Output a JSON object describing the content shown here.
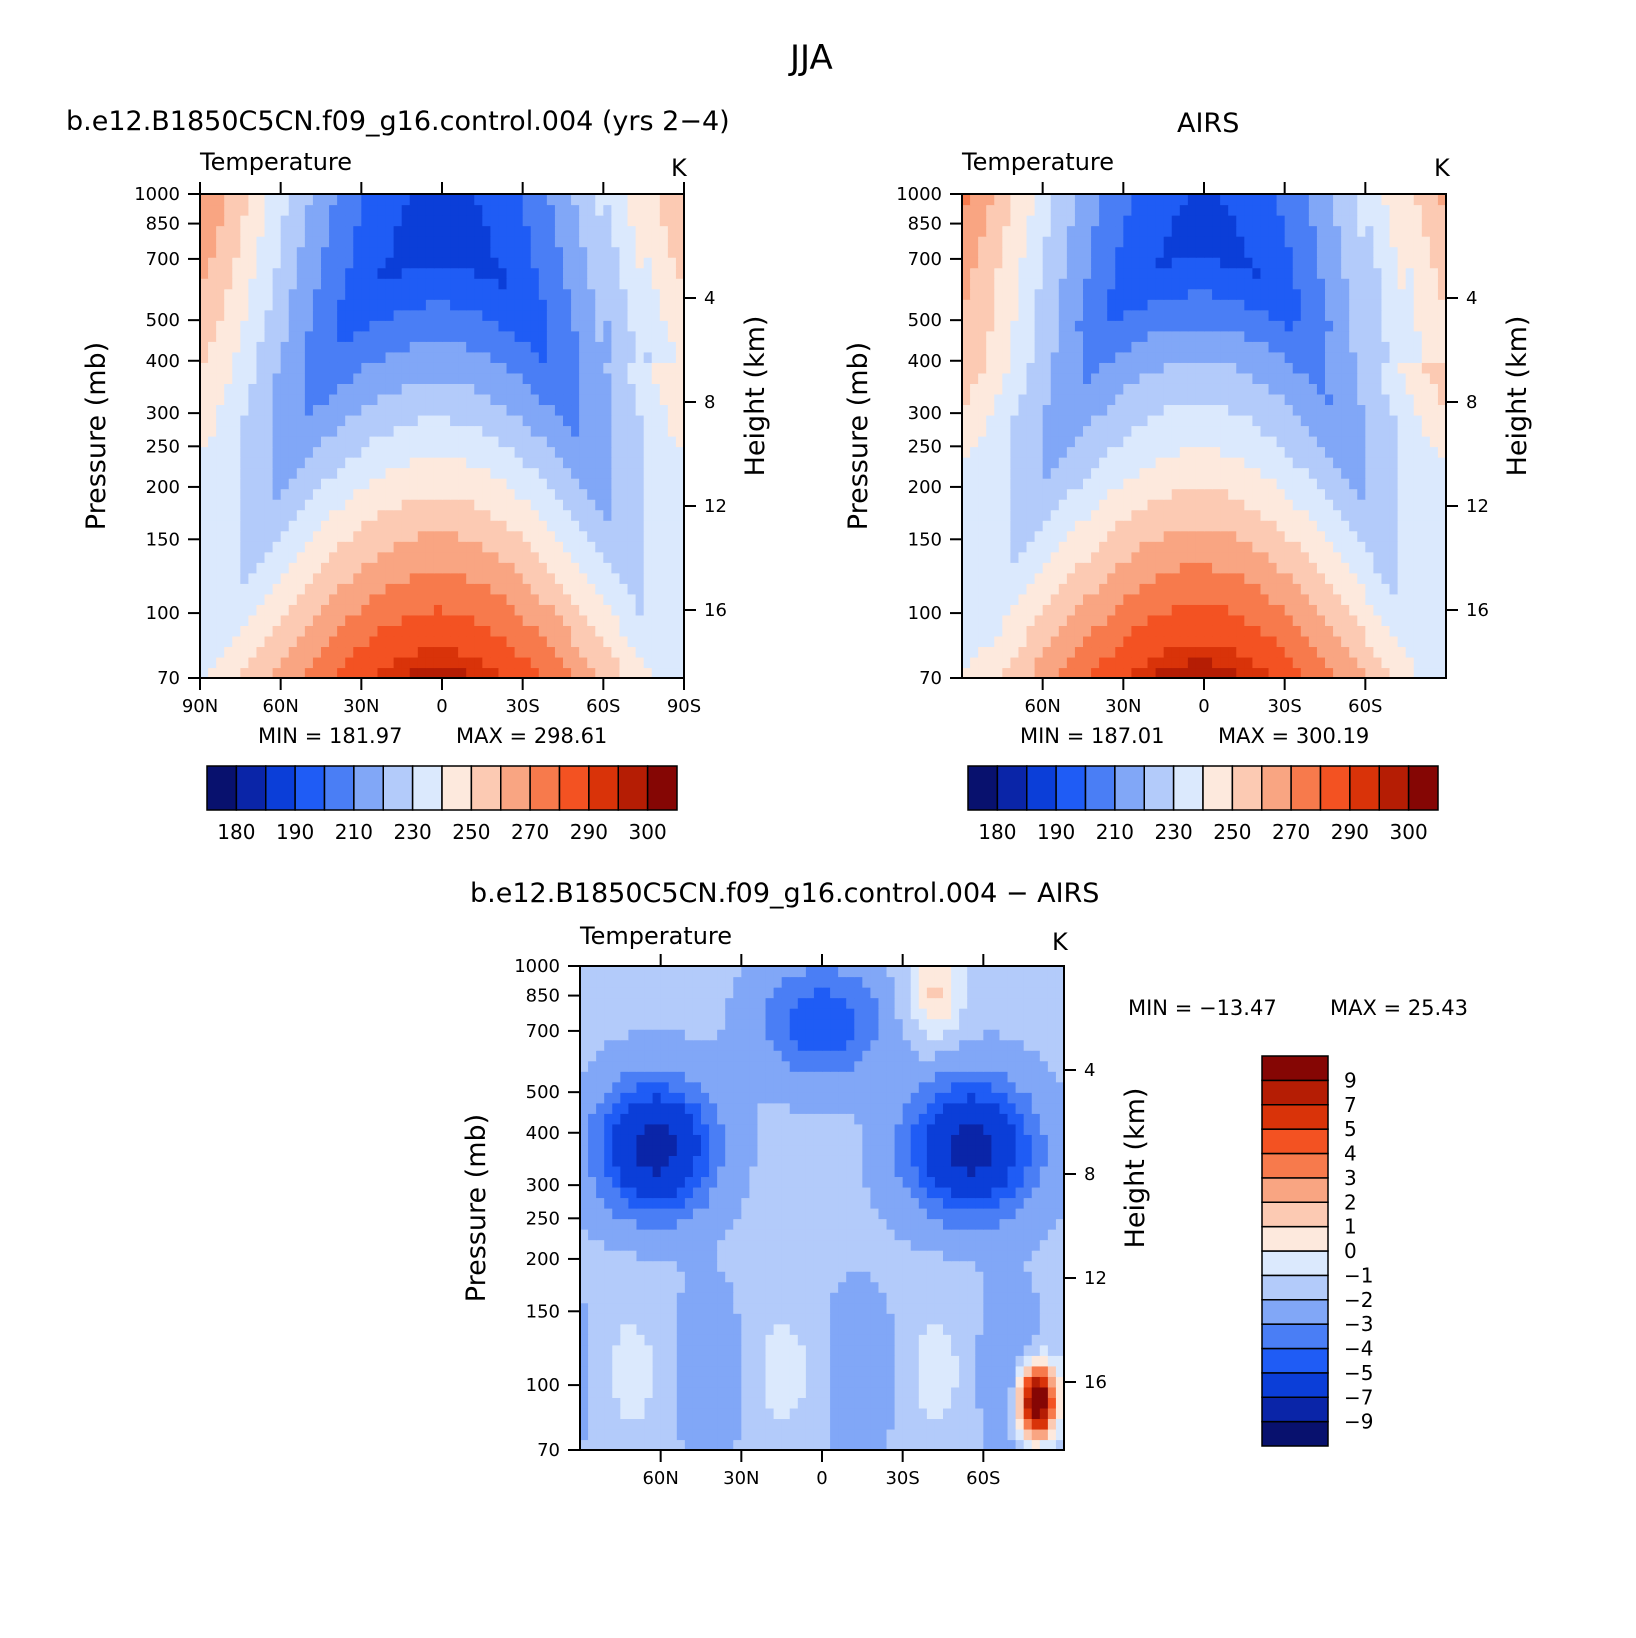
{
  "figure_title": "JJA",
  "chart_data": [
    {
      "type": "heatmap",
      "name": "b.e12.B1850C5CN.f09_g16.control.004 (yrs 2-4)",
      "title": "b.e12.B1850C5CN.f09_g16.control.004 (yrs 2−4)",
      "variable": "Temperature",
      "units": "K",
      "ylabel": "Pressure (mb)",
      "y2label": "Height (km)",
      "xticks": [
        "90N",
        "60N",
        "30N",
        "0",
        "30S",
        "60S",
        "90S"
      ],
      "yticks": [
        70,
        100,
        150,
        200,
        250,
        300,
        400,
        500,
        700,
        850,
        1000
      ],
      "y2ticks": [
        4,
        8,
        12,
        16
      ],
      "ylim": [
        1000,
        70
      ],
      "y_scale": "log",
      "min_text": "MIN = 181.97",
      "max_text": "MAX = 298.61",
      "min": 181.97,
      "max": 298.61,
      "colorbar_orientation": "horizontal",
      "colorbar_labels": [
        "180",
        "190",
        "210",
        "230",
        "250",
        "270",
        "290",
        "300"
      ]
    },
    {
      "type": "heatmap",
      "name": "AIRS",
      "title": "AIRS",
      "variable": "Temperature",
      "units": "K",
      "ylabel": "Pressure (mb)",
      "y2label": "Height (km)",
      "xticks": [
        "60N",
        "30N",
        "0",
        "30S",
        "60S"
      ],
      "yticks": [
        70,
        100,
        150,
        200,
        250,
        300,
        400,
        500,
        700,
        850,
        1000
      ],
      "y2ticks": [
        4,
        8,
        12,
        16
      ],
      "ylim": [
        1000,
        70
      ],
      "y_scale": "log",
      "min_text": "MIN = 187.01",
      "max_text": "MAX = 300.19",
      "min": 187.01,
      "max": 300.19,
      "colorbar_orientation": "horizontal",
      "colorbar_labels": [
        "180",
        "190",
        "210",
        "230",
        "250",
        "270",
        "290",
        "300"
      ]
    },
    {
      "type": "heatmap",
      "name": "b.e12.B1850C5CN.f09_g16.control.004 - AIRS",
      "title": "b.e12.B1850C5CN.f09_g16.control.004 − AIRS",
      "variable": "Temperature",
      "units": "K",
      "ylabel": "Pressure (mb)",
      "y2label": "Height (km)",
      "xticks": [
        "60N",
        "30N",
        "0",
        "30S",
        "60S"
      ],
      "yticks": [
        70,
        100,
        150,
        200,
        250,
        300,
        400,
        500,
        700,
        850,
        1000
      ],
      "y2ticks": [
        4,
        8,
        12,
        16
      ],
      "ylim": [
        1000,
        70
      ],
      "y_scale": "log",
      "min_text": "MIN = −13.47",
      "max_text": "MAX = 25.43",
      "min": -13.47,
      "max": 25.43,
      "colorbar_orientation": "vertical",
      "colorbar_labels": [
        "9",
        "7",
        "5",
        "4",
        "3",
        "2",
        "1",
        "0",
        "−1",
        "−2",
        "−3",
        "−4",
        "−5",
        "−7",
        "−9"
      ]
    }
  ],
  "palettes": {
    "temperature": [
      "#08116e",
      "#0a25a8",
      "#0b3ed8",
      "#1f5cf5",
      "#4a7ef5",
      "#81a7f7",
      "#b3cbfa",
      "#dbe9fd",
      "#fde9dd",
      "#fccab3",
      "#f9a582",
      "#f77a4c",
      "#f35222",
      "#d93309",
      "#b51d04",
      "#850604"
    ],
    "difference": [
      "#08116e",
      "#0a25a8",
      "#0b3ed8",
      "#1f5cf5",
      "#4a7ef5",
      "#81a7f7",
      "#b3cbfa",
      "#dbe9fd",
      "#fde9dd",
      "#fccab3",
      "#f9a582",
      "#f77a4c",
      "#f35222",
      "#d93309",
      "#b51d04",
      "#850604"
    ]
  }
}
